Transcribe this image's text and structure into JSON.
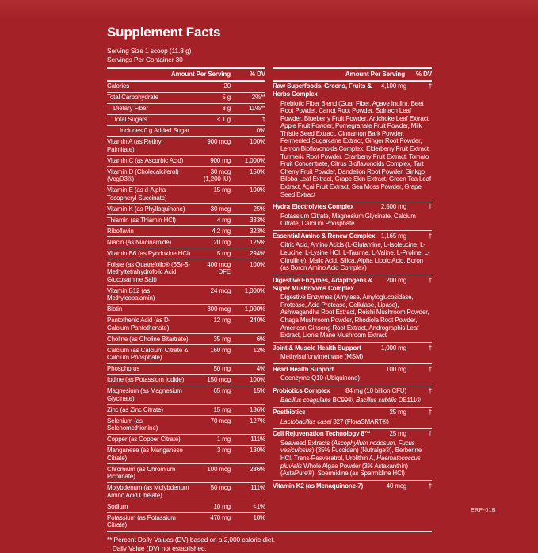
{
  "colors": {
    "background": "#A42127",
    "text": "#FFFFFF",
    "rule": "#FDF5F3"
  },
  "title": "Supplement Facts",
  "serving": {
    "size": "Serving Size 1 scoop (11.8 g)",
    "per_container": "Servings Per Container 30"
  },
  "table_header": {
    "amount": "Amount Per Serving",
    "dv": "% DV"
  },
  "left_rows": [
    {
      "label": "Calories",
      "amount": "20",
      "dv": "",
      "indent": 0
    },
    {
      "label": "Total Carbohydrate",
      "amount": "5 g",
      "dv": "2%**",
      "indent": 0
    },
    {
      "label": "Dietary Fiber",
      "amount": "3 g",
      "dv": "11%**",
      "indent": 1
    },
    {
      "label": "Total Sugars",
      "amount": "< 1 g",
      "dv": "†",
      "indent": 1
    },
    {
      "label": "Includes 0 g Added Sugar",
      "amount": "",
      "dv": "0%",
      "indent": 2
    },
    {
      "label": "Vitamin A (as Retinyl Palmitate)",
      "amount": "900 mcg",
      "dv": "100%",
      "indent": 0
    },
    {
      "label": "Vitamin C (as Ascorbic Acid)",
      "amount": "900 mg",
      "dv": "1,000%",
      "indent": 0
    },
    {
      "label": "Vitamin D (Cholecalciferol) (VegD3®)",
      "amount": "30 mcg\n(1,200 IU)",
      "dv": "150%",
      "indent": 0
    },
    {
      "label": "Vitamin E (as d-Alpha Tocopheryl Succinate)",
      "amount": "15 mg",
      "dv": "100%",
      "indent": 0
    },
    {
      "label": "Vitamin K (as Phylloquinone)",
      "amount": "30 mcg",
      "dv": "25%",
      "indent": 0
    },
    {
      "label": "Thiamin (as Thiamin HCl)",
      "amount": "4 mg",
      "dv": "333%",
      "indent": 0
    },
    {
      "label": "Riboflavin",
      "amount": "4.2 mg",
      "dv": "323%",
      "indent": 0
    },
    {
      "label": "Niacin (as Niacinamide)",
      "amount": "20 mg",
      "dv": "125%",
      "indent": 0
    },
    {
      "label": "Vitamin B6 (as Pyridoxine HCl)",
      "amount": "5 mg",
      "dv": "294%",
      "indent": 0
    },
    {
      "label": "Folate (as Quatrefolic® (6S)-5-Methyltetrahydrofolic Acid Glucosamine Salt)",
      "amount": "400 mcg\nDFE",
      "dv": "100%",
      "indent": 0
    },
    {
      "label": "Vitamin B12 (as Methylcobalamin)",
      "amount": "24 mcg",
      "dv": "1,000%",
      "indent": 0
    },
    {
      "label": "Biotin",
      "amount": "300 mcg",
      "dv": "1,000%",
      "indent": 0
    },
    {
      "label": "Pantothenic Acid (as D-Calcium Pantothenate)",
      "amount": "12 mg",
      "dv": "240%",
      "indent": 0
    },
    {
      "label": "Choline (as Choline Bitartrate)",
      "amount": "35 mg",
      "dv": "6%",
      "indent": 0
    },
    {
      "label": "Calcium (as Calcium Citrate & Calcium Phosphate)",
      "amount": "160 mg",
      "dv": "12%",
      "indent": 0
    },
    {
      "label": "Phosphorus",
      "amount": "50 mg",
      "dv": "4%",
      "indent": 0
    },
    {
      "label": "Iodine (as Potassium Iodide)",
      "amount": "150 mcg",
      "dv": "100%",
      "indent": 0
    },
    {
      "label": "Magnesium (as Magnesium Glycinate)",
      "amount": "65 mg",
      "dv": "15%",
      "indent": 0
    },
    {
      "label": "Zinc (as Zinc Citrate)",
      "amount": "15 mg",
      "dv": "136%",
      "indent": 0
    },
    {
      "label": "Selenium (as Selenomethionine)",
      "amount": "70 mcg",
      "dv": "127%",
      "indent": 0
    },
    {
      "label": "Copper (as Copper Citrate)",
      "amount": "1 mg",
      "dv": "111%",
      "indent": 0
    },
    {
      "label": "Manganese (as Manganese Citrate)",
      "amount": "3 mg",
      "dv": "130%",
      "indent": 0
    },
    {
      "label": "Chromium (as Chromium Picolinate)",
      "amount": "100 mcg",
      "dv": "286%",
      "indent": 0
    },
    {
      "label": "Molybdenum (as Molybdenum Amino Acid Chelate)",
      "amount": "50 mcg",
      "dv": "111%",
      "indent": 0
    },
    {
      "label": "Sodium",
      "amount": "10 mg",
      "dv": "<1%",
      "indent": 0
    },
    {
      "label": "Potassium (as Potassium Citrate)",
      "amount": "470 mg",
      "dv": "10%",
      "indent": 0
    }
  ],
  "right_sections": [
    {
      "name": "Raw Superfoods, Greens, Fruits & Herbs Complex",
      "amount": "4,100 mg",
      "dv": "†",
      "ingredients": [
        {
          "text": "Prebiotic Fiber Blend (Guar Fiber, Agave Inulin), Beet Root Powder, Carrot Root Powder, Spinach Leaf Powder, Blueberry Fruit Powder, Artichoke Leaf Extract, Apple Fruit Powder, Pomegranate Fruit Powder, Milk Thistle Seed Extract, Cinnamon Bark Powder, Fermented Sugarcane Extract, Ginger Root Powder, Lemon Bioflavonoids Complex, Elderberry Fruit Extract, Turmeric Root Powder, Cranberry Fruit Extract, Tomato Fruit Concentrate, Citrus Bioflavonoids Complex, Tart Cherry Fruit Powder, Dandelion Root Powder, Ginkgo Biloba Leaf Extract, Grape Skin Extract, Green Tea Leaf Extract, Açai Fruit Extract, Sea Moss Powder, Grape Seed Extract",
          "italic": false
        }
      ]
    },
    {
      "name": "Hydra Electrolytes Complex",
      "amount": "2,500 mg",
      "dv": "†",
      "ingredients": [
        {
          "text": "Potassium Citrate, Magnesium Glycinate, Calcium Citrate, Calcium Phosphate",
          "italic": false
        }
      ]
    },
    {
      "name": "Essential Amino & Renew Complex",
      "amount": "1,165 mg",
      "dv": "†",
      "ingredients": [
        {
          "text": "Citric Acid, Amino Acids (L-Glutamine, L-Isoleucine, L-Leucine, L-Lysine HCl, L-Taurine, L-Valine, L-Proline, L-Citrulline), Malic Acid, Silica, Alpha Lipoic Acid, Boron (as Boron Amino Acid Complex)",
          "italic": false
        }
      ]
    },
    {
      "name": "Digestive Enzymes, Adaptogens & Super Mushrooms Complex",
      "amount": "200 mg",
      "dv": "†",
      "ingredients": [
        {
          "text": "Digestive Enzymes (Amylase, Amyloglucosidase, Protease, Acid Protease, Cellulase, Lipase), Ashwagandha Root Extract, Reishi Mushroom Powder, Chaga Mushroom Powder, Rhodiola Root Powder, American Ginseng Root Extract, Andrographis Leaf Extract, Lion's Mane Mushroom Extract",
          "italic": false
        }
      ]
    },
    {
      "name": "Joint & Muscle Health Support",
      "amount": "1,000 mg",
      "dv": "†",
      "ingredients": [
        {
          "text": "Methylsulfonylmethane (MSM)",
          "italic": false
        }
      ]
    },
    {
      "name": "Heart Health Support",
      "amount": "100 mg",
      "dv": "†",
      "ingredients": [
        {
          "text": "Coenzyme Q10 (Ubiquinone)",
          "italic": false
        }
      ]
    },
    {
      "name": "Probiotics Complex",
      "amount": "84 mg (10 billion CFU)",
      "dv": "†",
      "ingredients": [
        {
          "text": "Bacillus coagulans",
          "italic": true
        },
        {
          "text": " BC99®, ",
          "italic": false
        },
        {
          "text": "Bacillus subtilis",
          "italic": true
        },
        {
          "text": " DE111®",
          "italic": false
        }
      ]
    },
    {
      "name": "Postbiotics",
      "amount": "25 mg",
      "dv": "†",
      "ingredients": [
        {
          "text": "Lactobacillus casei",
          "italic": true
        },
        {
          "text": " 327 (FloraSMART®)",
          "italic": false
        }
      ]
    },
    {
      "name": "Cell Rejuvenation Technology 8™",
      "amount": "25 mg",
      "dv": "†",
      "ingredients": [
        {
          "text": "Seaweed Extracts (",
          "italic": false
        },
        {
          "text": "Ascophyllum nodosum, Fucus vesiculosus",
          "italic": true
        },
        {
          "text": ") (35% Fucoidan) (Nutralga®), Berberine HCl, Trans-Resveratrol, Urolithin A, ",
          "italic": false
        },
        {
          "text": "Haematococcus pluvialis",
          "italic": true
        },
        {
          "text": " Whole Algae Powder (3% Astaxanthin) (AstaPure®), Spermidine (as Spermidine HCl)",
          "italic": false
        }
      ]
    },
    {
      "name": "Vitamin K2 (as Menaquinone-7)",
      "amount": "40 mcg",
      "dv": "†",
      "ingredients": []
    }
  ],
  "footnotes": {
    "dv_note": "** Percent Daily Values (DV) based on a 2,000 calorie diet.",
    "dagger_note": "†  Daily Value (DV) not established."
  },
  "corner_code": "ERP-01B"
}
